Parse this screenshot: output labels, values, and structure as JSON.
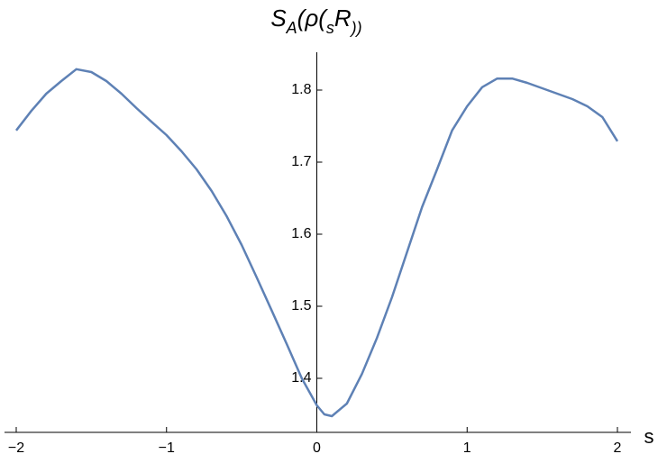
{
  "chart_data": {
    "type": "line",
    "title_parts": [
      "S",
      "A",
      "(ρ(",
      "s",
      "R",
      "))"
    ],
    "x_label": "s",
    "x": [
      -2,
      -1.9,
      -1.8,
      -1.7,
      -1.6,
      -1.5,
      -1.4,
      -1.3,
      -1.2,
      -1.1,
      -1.0,
      -0.9,
      -0.8,
      -0.7,
      -0.6,
      -0.5,
      -0.4,
      -0.3,
      -0.2,
      -0.1,
      0,
      0.05,
      0.1,
      0.2,
      0.3,
      0.4,
      0.5,
      0.6,
      0.7,
      0.8,
      0.9,
      1.0,
      1.1,
      1.2,
      1.3,
      1.4,
      1.5,
      1.6,
      1.7,
      1.8,
      1.9,
      2.0
    ],
    "series": [
      {
        "color": "#5e81b5",
        "values": [
          1.744,
          1.771,
          1.795,
          1.8125,
          1.829,
          1.825,
          1.8125,
          1.795,
          1.775,
          1.756,
          1.7375,
          1.715,
          1.69,
          1.66,
          1.625,
          1.585,
          1.54,
          1.494,
          1.4475,
          1.4,
          1.3625,
          1.35,
          1.3475,
          1.365,
          1.406,
          1.456,
          1.5125,
          1.575,
          1.6375,
          1.69,
          1.744,
          1.7775,
          1.804,
          1.816,
          1.816,
          1.81,
          1.8025,
          1.795,
          1.7875,
          1.7775,
          1.7625,
          1.729
        ]
      }
    ],
    "xlim": [
      -2,
      2
    ],
    "ylim": [
      1.325,
      1.8525
    ],
    "xticks": [
      {
        "value": -2,
        "label": "−2"
      },
      {
        "value": -1,
        "label": "−1"
      },
      0,
      1,
      2
    ],
    "yticks": [
      1.4,
      1.5,
      1.6,
      1.7,
      1.8
    ]
  }
}
